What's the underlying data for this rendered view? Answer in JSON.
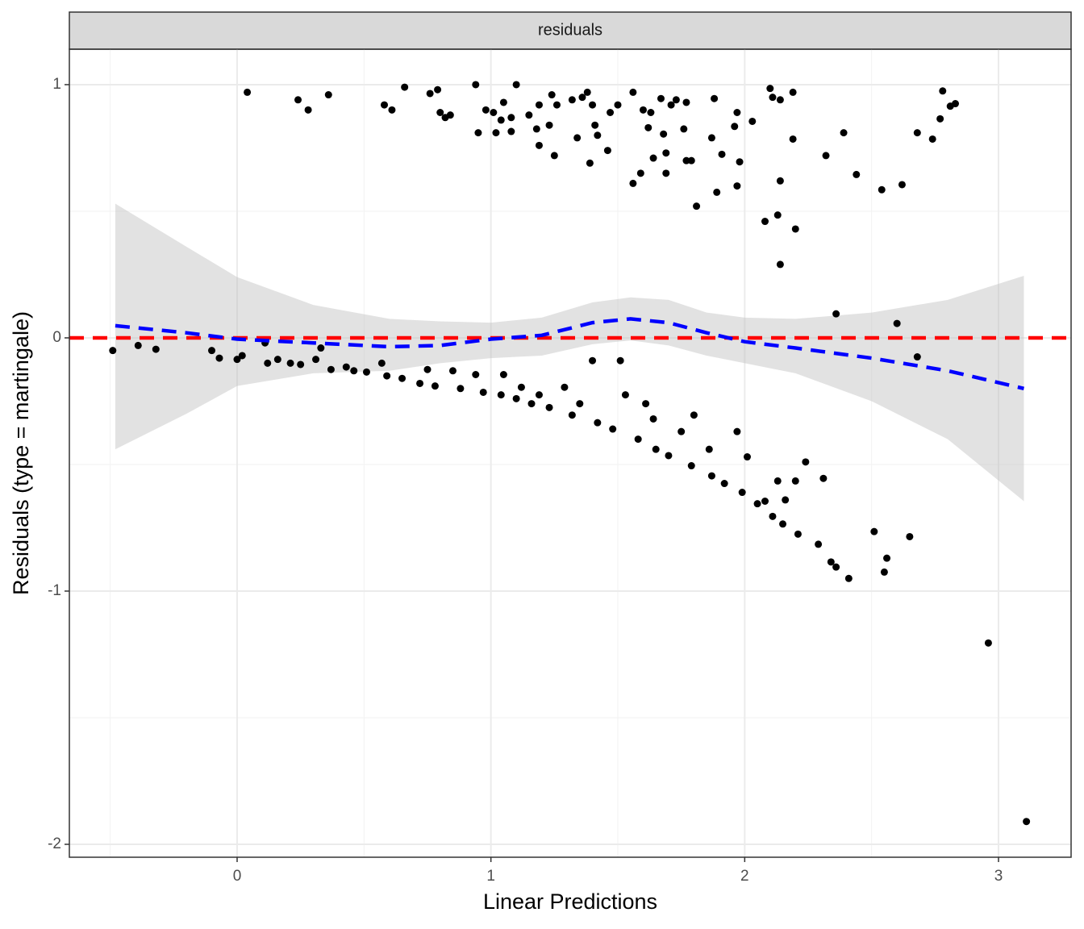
{
  "chart_data": {
    "type": "scatter",
    "strip_label": "residuals",
    "x_label": "Linear Predictions",
    "y_label": "Residuals (type = martingale)",
    "xlim": [
      -0.661,
      3.286
    ],
    "ylim": [
      -2.051,
      1.14
    ],
    "xticks": [
      0,
      1,
      2,
      3
    ],
    "yticks": [
      -2,
      -1,
      0,
      1
    ],
    "x_minor_grid": [
      -0.5,
      0.5,
      1.5,
      2.5
    ],
    "y_minor_grid": [
      -1.5,
      -0.5,
      0.5
    ],
    "grid": true,
    "points": {
      "color": "#000000",
      "x": [
        0.04,
        0.24,
        0.28,
        0.36,
        0.58,
        0.61,
        0.66,
        0.76,
        0.79,
        0.8,
        0.82,
        0.84,
        0.94,
        0.95,
        0.98,
        1.01,
        1.02,
        1.05,
        1.04,
        1.08,
        1.1,
        1.08,
        1.15,
        1.18,
        1.19,
        1.19,
        1.23,
        1.24,
        1.25,
        1.26,
        1.32,
        1.34,
        1.36,
        1.38,
        1.4,
        1.39,
        1.41,
        1.42,
        1.46,
        1.47,
        1.5,
        1.56,
        1.56,
        1.59,
        1.6,
        1.62,
        1.63,
        1.64,
        1.67,
        1.68,
        1.69,
        1.69,
        1.71,
        1.73,
        1.76,
        1.77,
        1.77,
        1.79,
        1.81,
        1.87,
        1.88,
        1.89,
        1.91,
        1.96,
        1.97,
        1.98,
        1.97,
        2.03,
        2.08,
        2.1,
        2.11,
        2.13,
        2.14,
        2.14,
        2.14,
        2.19,
        2.19,
        2.2,
        2.32,
        2.36,
        2.39,
        2.44,
        2.54,
        2.6,
        2.62,
        2.68,
        2.74,
        2.77,
        2.78,
        2.81,
        2.83,
        -0.49,
        -0.39,
        -0.32,
        -0.1,
        -0.07,
        0,
        0.02,
        0.11,
        0.12,
        0.16,
        0.21,
        0.25,
        0.31,
        0.33,
        0.37,
        0.43,
        0.46,
        0.51,
        0.57,
        0.59,
        0.65,
        0.72,
        0.75,
        0.78,
        0.85,
        0.88,
        0.94,
        0.97,
        1.04,
        1.05,
        1.1,
        1.12,
        1.16,
        1.19,
        1.23,
        1.29,
        1.32,
        1.35,
        1.4,
        1.42,
        1.48,
        1.51,
        1.53,
        1.58,
        1.61,
        1.64,
        1.65,
        1.7,
        1.75,
        1.79,
        1.8,
        1.86,
        1.87,
        1.92,
        1.97,
        1.99,
        2.01,
        2.05,
        2.08,
        2.11,
        2.13,
        2.15,
        2.16,
        2.2,
        2.21,
        2.24,
        2.29,
        2.31,
        2.34,
        2.36,
        2.41,
        2.51,
        2.55,
        2.56,
        2.65,
        2.68,
        2.96,
        3.11
      ],
      "y": [
        0.97,
        0.94,
        0.9,
        0.96,
        0.92,
        0.9,
        0.99,
        0.965,
        0.98,
        0.89,
        0.87,
        0.88,
        1.0,
        0.81,
        0.9,
        0.89,
        0.81,
        0.93,
        0.86,
        0.87,
        1.0,
        0.815,
        0.88,
        0.825,
        0.76,
        0.92,
        0.84,
        0.96,
        0.72,
        0.92,
        0.94,
        0.79,
        0.95,
        0.97,
        0.92,
        0.69,
        0.84,
        0.8,
        0.74,
        0.89,
        0.92,
        0.97,
        0.61,
        0.65,
        0.9,
        0.83,
        0.89,
        0.71,
        0.945,
        0.805,
        0.73,
        0.65,
        0.92,
        0.94,
        0.825,
        0.93,
        0.7,
        0.7,
        0.52,
        0.79,
        0.945,
        0.575,
        0.725,
        0.835,
        0.89,
        0.695,
        0.6,
        0.855,
        0.46,
        0.985,
        0.95,
        0.485,
        0.94,
        0.62,
        0.29,
        0.97,
        0.785,
        0.43,
        0.72,
        0.095,
        0.81,
        0.645,
        0.585,
        0.057,
        0.605,
        0.81,
        0.785,
        0.865,
        0.975,
        0.915,
        0.925,
        -0.05,
        -0.03,
        -0.045,
        -0.05,
        -0.08,
        -0.085,
        -0.07,
        -0.02,
        -0.1,
        -0.085,
        -0.1,
        -0.105,
        -0.085,
        -0.04,
        -0.125,
        -0.115,
        -0.13,
        -0.135,
        -0.1,
        -0.15,
        -0.16,
        -0.18,
        -0.125,
        -0.19,
        -0.13,
        -0.2,
        -0.145,
        -0.215,
        -0.225,
        -0.145,
        -0.24,
        -0.195,
        -0.26,
        -0.225,
        -0.275,
        -0.195,
        -0.305,
        -0.26,
        -0.09,
        -0.335,
        -0.36,
        -0.09,
        -0.225,
        -0.4,
        -0.26,
        -0.32,
        -0.44,
        -0.465,
        -0.37,
        -0.505,
        -0.305,
        -0.44,
        -0.545,
        -0.575,
        -0.37,
        -0.61,
        -0.47,
        -0.655,
        -0.645,
        -0.705,
        -0.565,
        -0.735,
        -0.64,
        -0.565,
        -0.775,
        -0.49,
        -0.815,
        -0.555,
        -0.885,
        -0.905,
        -0.95,
        -0.765,
        -0.925,
        -0.87,
        -0.785,
        -0.075,
        -1.205,
        -1.91
      ]
    },
    "smooth": {
      "color": "#0000ff",
      "ribbon_color": "#bebebe",
      "x": [
        -0.48,
        -0.2,
        0,
        0.3,
        0.6,
        0.8,
        1.0,
        1.2,
        1.4,
        1.55,
        1.7,
        1.85,
        2.0,
        2.2,
        2.5,
        2.8,
        3.1
      ],
      "y": [
        0.048,
        0.02,
        -0.005,
        -0.02,
        -0.035,
        -0.03,
        -0.005,
        0.01,
        0.06,
        0.075,
        0.06,
        0.02,
        -0.015,
        -0.04,
        -0.08,
        -0.13,
        -0.2
      ],
      "upper": [
        0.53,
        0.36,
        0.24,
        0.13,
        0.075,
        0.065,
        0.06,
        0.08,
        0.14,
        0.16,
        0.15,
        0.1,
        0.08,
        0.075,
        0.1,
        0.15,
        0.245
      ],
      "lower": [
        -0.44,
        -0.3,
        -0.19,
        -0.14,
        -0.13,
        -0.1,
        -0.08,
        -0.07,
        -0.025,
        -0.01,
        -0.03,
        -0.07,
        -0.1,
        -0.14,
        -0.25,
        -0.4,
        -0.645
      ]
    },
    "hline": {
      "y": 0,
      "color": "#ff0000"
    }
  }
}
